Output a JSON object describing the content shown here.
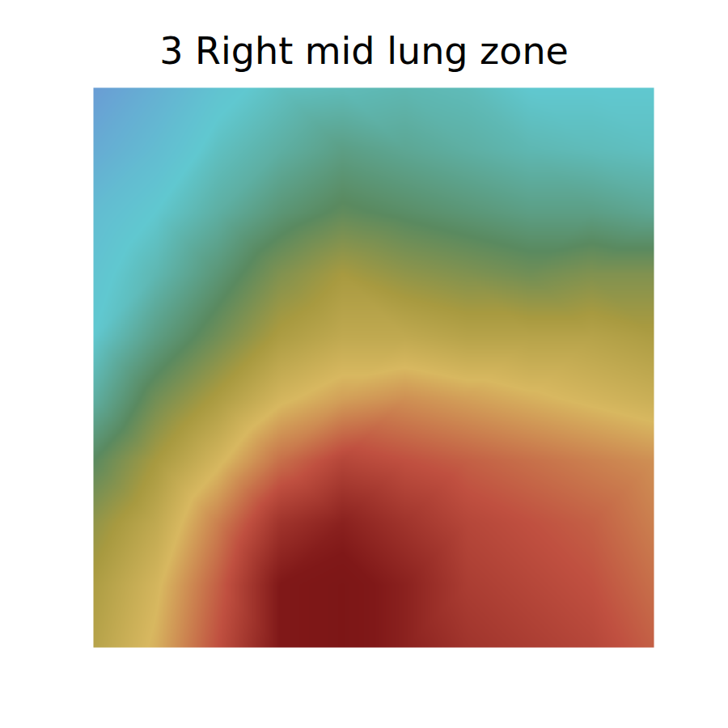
{
  "chart_data": {
    "type": "heatmap",
    "title": "3 Right mid lung zone",
    "tick_labels": false,
    "color": "jet",
    "color_range": [
      0,
      1
    ],
    "cells": [
      [
        0.12,
        0.2,
        0.28,
        0.32,
        0.33,
        0.34,
        0.33,
        0.3,
        0.3,
        0.3
      ],
      [
        0.18,
        0.25,
        0.32,
        0.36,
        0.4,
        0.38,
        0.36,
        0.34,
        0.33,
        0.32
      ],
      [
        0.25,
        0.3,
        0.36,
        0.42,
        0.46,
        0.44,
        0.42,
        0.4,
        0.4,
        0.38
      ],
      [
        0.28,
        0.34,
        0.42,
        0.5,
        0.55,
        0.52,
        0.5,
        0.48,
        0.5,
        0.5
      ],
      [
        0.3,
        0.4,
        0.48,
        0.56,
        0.6,
        0.6,
        0.58,
        0.58,
        0.58,
        0.56
      ],
      [
        0.36,
        0.48,
        0.56,
        0.64,
        0.68,
        0.7,
        0.68,
        0.66,
        0.64,
        0.62
      ],
      [
        0.45,
        0.55,
        0.64,
        0.74,
        0.8,
        0.78,
        0.76,
        0.74,
        0.72,
        0.7
      ],
      [
        0.52,
        0.6,
        0.72,
        0.84,
        0.88,
        0.84,
        0.8,
        0.78,
        0.76,
        0.72
      ],
      [
        0.56,
        0.64,
        0.76,
        0.9,
        0.92,
        0.88,
        0.82,
        0.8,
        0.78,
        0.74
      ],
      [
        0.58,
        0.66,
        0.78,
        0.9,
        0.92,
        0.88,
        0.84,
        0.82,
        0.8,
        0.76
      ]
    ]
  }
}
